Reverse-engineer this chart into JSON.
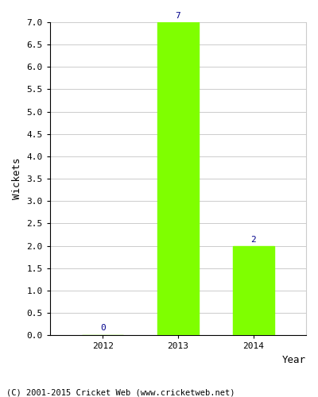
{
  "categories": [
    "2012",
    "2013",
    "2014"
  ],
  "values": [
    0,
    7,
    2
  ],
  "bar_color": "#7fff00",
  "bar_edgecolor": "#7fff00",
  "xlabel": "Year",
  "ylabel": "Wickets",
  "ylim": [
    0,
    7.0
  ],
  "yticks": [
    0.0,
    0.5,
    1.0,
    1.5,
    2.0,
    2.5,
    3.0,
    3.5,
    4.0,
    4.5,
    5.0,
    5.5,
    6.0,
    6.5,
    7.0
  ],
  "label_color": "#00008b",
  "label_fontsize": 8,
  "xlabel_fontsize": 9,
  "ylabel_fontsize": 9,
  "tick_fontsize": 8,
  "footer": "(C) 2001-2015 Cricket Web (www.cricketweb.net)",
  "footer_fontsize": 7.5,
  "background_color": "#ffffff",
  "grid_color": "#cccccc",
  "bar_width": 0.55
}
